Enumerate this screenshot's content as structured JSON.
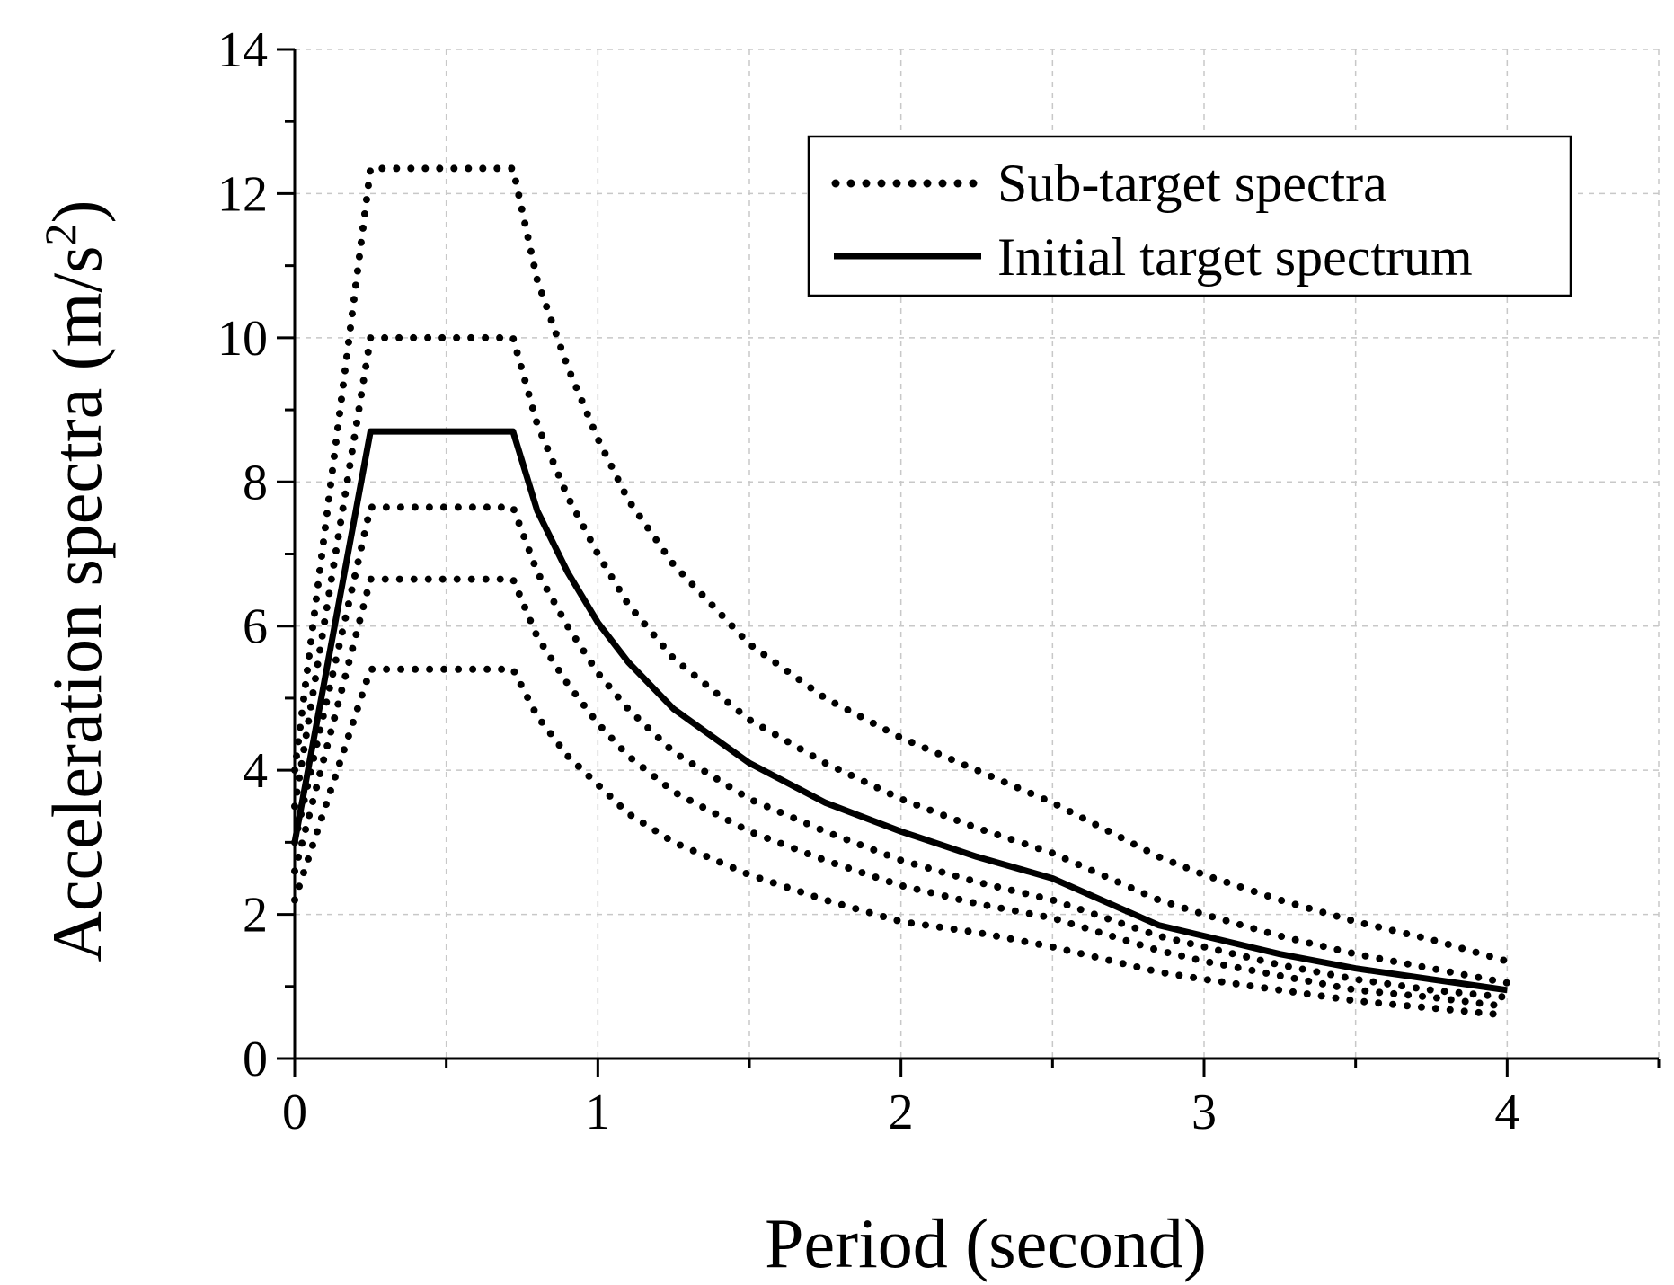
{
  "chart_data": {
    "type": "line",
    "title": "",
    "xlabel": "Period (second)",
    "ylabel": "Acceleration spectra (m/s",
    "ylabel_superscript": "2",
    "ylabel_suffix": ")",
    "xlim": [
      0,
      4.5
    ],
    "ylim": [
      0,
      14
    ],
    "xticks": [
      0,
      1,
      2,
      3,
      4
    ],
    "yticks": [
      0,
      2,
      4,
      6,
      8,
      10,
      12,
      14
    ],
    "xtick_labels": [
      "0",
      "1",
      "2",
      "3",
      "4"
    ],
    "ytick_labels": [
      "0",
      "2",
      "4",
      "6",
      "8",
      "10",
      "12",
      "14"
    ],
    "grid": true,
    "legend_position": "top-right",
    "legend": {
      "sub_target": "Sub-target spectra",
      "initial_target": "Initial target spectrum"
    },
    "series": [
      {
        "name": "Initial target spectrum",
        "style": "solid",
        "x": [
          0,
          0.25,
          0.72,
          0.8,
          0.9,
          1.0,
          1.1,
          1.25,
          1.5,
          1.75,
          2.0,
          2.25,
          2.5,
          2.85,
          3.0,
          3.25,
          3.5,
          3.75,
          4.0
        ],
        "y": [
          3.0,
          8.7,
          8.7,
          7.6,
          6.75,
          6.05,
          5.5,
          4.85,
          4.1,
          3.55,
          3.15,
          2.8,
          2.5,
          1.85,
          1.7,
          1.45,
          1.25,
          1.1,
          0.95
        ]
      },
      {
        "name": "Sub-target spectrum 1",
        "style": "dotted",
        "x": [
          0,
          0.25,
          0.72,
          0.8,
          0.9,
          1.0,
          1.1,
          1.25,
          1.5,
          1.75,
          2.0,
          2.25,
          2.5,
          2.85,
          3.0,
          3.25,
          3.5,
          3.75,
          4.0
        ],
        "y": [
          4.0,
          12.35,
          12.35,
          10.8,
          9.6,
          8.6,
          7.75,
          6.85,
          5.75,
          5.0,
          4.45,
          4.0,
          3.55,
          2.8,
          2.55,
          2.2,
          1.9,
          1.65,
          1.35
        ]
      },
      {
        "name": "Sub-target spectrum 2",
        "style": "dotted",
        "x": [
          0,
          0.25,
          0.72,
          0.8,
          0.9,
          1.0,
          1.1,
          1.25,
          1.5,
          1.75,
          2.0,
          2.25,
          2.5,
          2.85,
          3.0,
          3.25,
          3.5,
          3.75,
          4.0
        ],
        "y": [
          3.5,
          10.0,
          10.0,
          8.8,
          7.8,
          7.0,
          6.3,
          5.55,
          4.7,
          4.1,
          3.6,
          3.2,
          2.85,
          2.2,
          2.0,
          1.7,
          1.45,
          1.25,
          1.05
        ]
      },
      {
        "name": "Sub-target spectrum 3",
        "style": "dotted",
        "x": [
          0,
          0.25,
          0.72,
          0.8,
          0.9,
          1.0,
          1.1,
          1.25,
          1.5,
          1.75,
          2.0,
          2.25,
          2.5,
          2.85,
          3.0,
          3.25,
          3.5,
          3.75,
          4.0
        ],
        "y": [
          3.0,
          7.65,
          7.65,
          6.75,
          6.0,
          5.35,
          4.85,
          4.25,
          3.6,
          3.15,
          2.75,
          2.45,
          2.2,
          1.7,
          1.55,
          1.3,
          1.1,
          0.95,
          0.85
        ]
      },
      {
        "name": "Sub-target spectrum 4",
        "style": "dotted",
        "x": [
          0,
          0.25,
          0.72,
          0.8,
          0.9,
          1.0,
          1.1,
          1.25,
          1.5,
          1.75,
          2.0,
          2.25,
          2.5,
          2.85,
          3.0,
          3.25,
          3.5,
          3.75,
          4.0
        ],
        "y": [
          2.6,
          6.65,
          6.65,
          5.85,
          5.2,
          4.65,
          4.2,
          3.7,
          3.15,
          2.75,
          2.4,
          2.15,
          1.95,
          1.5,
          1.35,
          1.15,
          0.95,
          0.85,
          0.72
        ]
      },
      {
        "name": "Sub-target spectrum 5",
        "style": "dotted",
        "x": [
          0,
          0.25,
          0.72,
          0.8,
          0.9,
          1.0,
          1.1,
          1.25,
          1.5,
          1.75,
          2.0,
          2.25,
          2.5,
          2.85,
          3.0,
          3.25,
          3.5,
          3.75,
          4.0
        ],
        "y": [
          2.2,
          5.4,
          5.4,
          4.75,
          4.2,
          3.8,
          3.4,
          3.0,
          2.55,
          2.2,
          1.9,
          1.75,
          1.55,
          1.2,
          1.1,
          0.95,
          0.8,
          0.7,
          0.6
        ]
      }
    ]
  }
}
